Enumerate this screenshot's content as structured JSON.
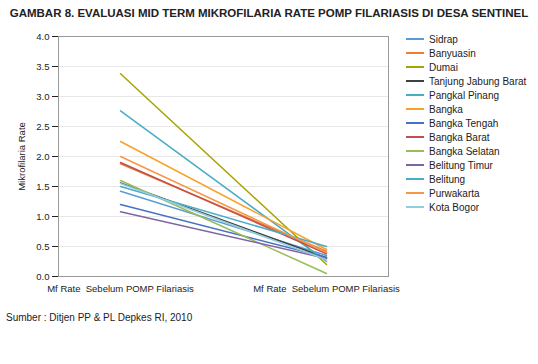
{
  "chart_data": {
    "type": "line",
    "title": "GAMBAR 8. EVALUASI MID TERM MIKROFILARIA RATE POMP FILARIASIS DI DESA SENTINEL",
    "source": "Sumber : Ditjen PP & PL Depkes  RI, 2010",
    "ylabel": "Mikrofilaria Rate",
    "categories": [
      "Mf Rate  Sebelum POMP Filariasis",
      "Mf Rate  Sebelum POMP Filariasis"
    ],
    "series": [
      {
        "name": "Sidrap",
        "color": "#5B9BD5",
        "values": [
          1.42,
          0.35
        ]
      },
      {
        "name": "Banyuasin",
        "color": "#ED7D31",
        "values": [
          1.88,
          0.42
        ]
      },
      {
        "name": "Dumai",
        "color": "#A5A500",
        "values": [
          3.38,
          0.2
        ]
      },
      {
        "name": "Tanjung Jabung Barat",
        "color": "#404040",
        "values": [
          1.56,
          0.31
        ]
      },
      {
        "name": "Pangkal Pinang",
        "color": "#4BACC6",
        "values": [
          2.76,
          0.25
        ]
      },
      {
        "name": "Bangka",
        "color": "#F7A128",
        "values": [
          2.25,
          0.45
        ]
      },
      {
        "name": "Bangka Tengah",
        "color": "#4472C4",
        "values": [
          1.2,
          0.32
        ]
      },
      {
        "name": "Bangka Barat",
        "color": "#C0504D",
        "values": [
          1.9,
          0.38
        ]
      },
      {
        "name": "Bangka Selatan",
        "color": "#9BBB59",
        "values": [
          1.6,
          0.05
        ]
      },
      {
        "name": "Belitung Timur",
        "color": "#8064A2",
        "values": [
          1.08,
          0.3
        ]
      },
      {
        "name": "Belitung",
        "color": "#4BACC6",
        "values": [
          1.5,
          0.5
        ]
      },
      {
        "name": "Purwakarta",
        "color": "#F79646",
        "values": [
          2.0,
          0.4
        ]
      },
      {
        "name": "Kota Bogor",
        "color": "#92CDDC",
        "values": [
          1.55,
          0.28
        ]
      }
    ],
    "ylim": [
      0,
      4
    ],
    "yticks": [
      0,
      0.5,
      1,
      1.5,
      2,
      2.5,
      3,
      3.5,
      4
    ],
    "grid": true,
    "legend": "right"
  }
}
